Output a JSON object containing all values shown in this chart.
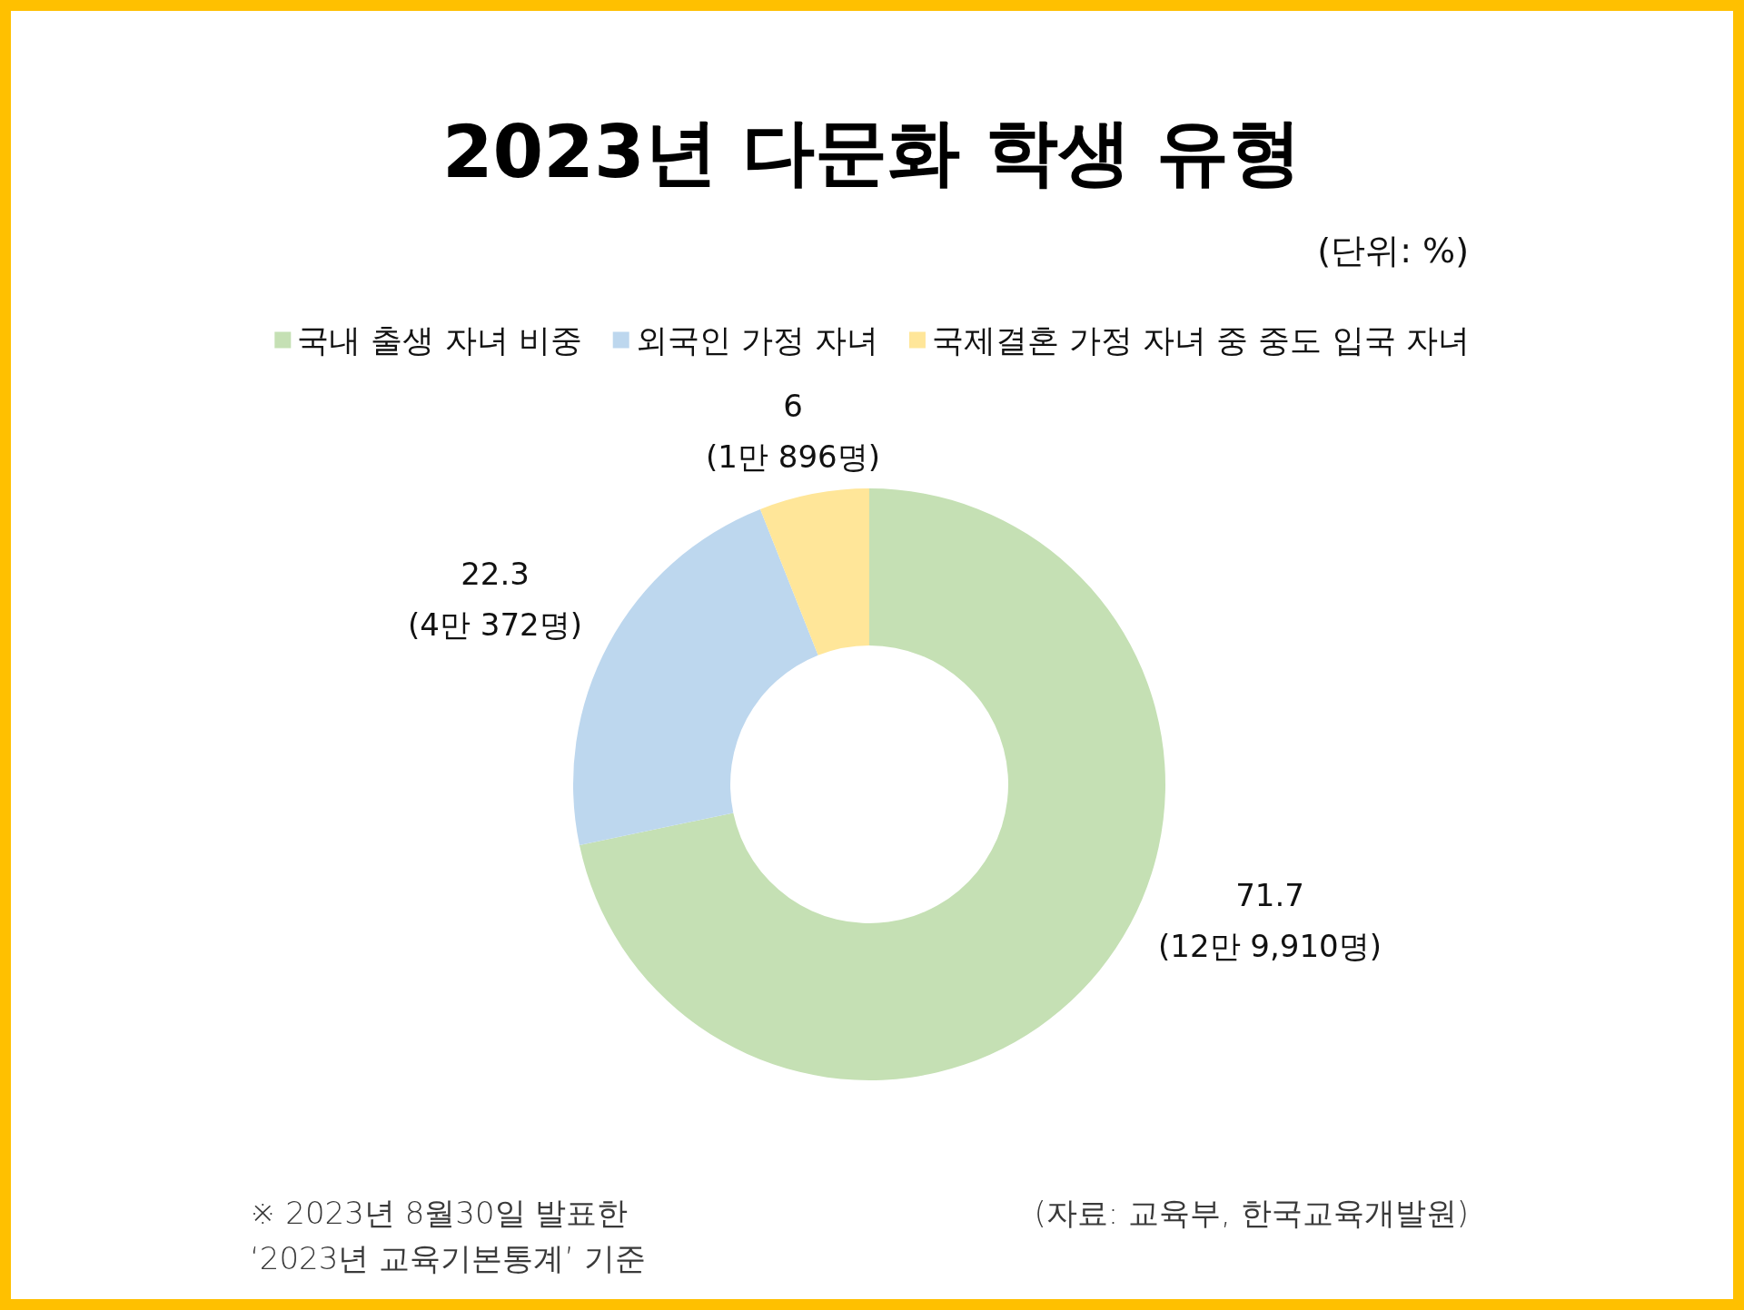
{
  "chart_data": {
    "type": "donut",
    "title": "2023년 다문화 학생 유형",
    "subtitle": "(단위: %)",
    "categories": [
      "국내 출생 자녀 비중",
      "외국인 가정 자녀",
      "국제결혼 가정 자녀 중 중도 입국 자녀"
    ],
    "values": [
      71.7,
      22.3,
      6
    ],
    "colors": [
      "#c5e0b4",
      "#bdd7ee",
      "#ffe699"
    ],
    "value_labels": [
      "71.7\n(12만 9,910명)",
      "22.3\n(4만 372명)",
      "6\n(1만 896명)"
    ],
    "legend": "top",
    "annotations": [
      "※ 2023년 8월30일 발표한\n‘2023년 교육기본통계’ 기준",
      "(자료: 교육부, 한국교육개발원)"
    ]
  }
}
